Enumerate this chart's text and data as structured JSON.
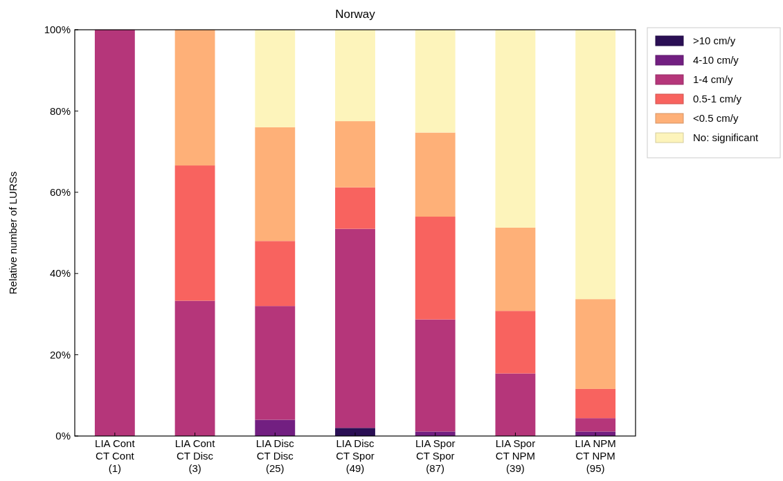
{
  "chart_data": {
    "type": "bar",
    "title": "Norway",
    "ylabel": "Relative number of LURSs",
    "categories": [
      "LIA Cont\nCT Cont\n(1)",
      "LIA Cont\nCT Disc\n(3)",
      "LIA Disc\nCT Disc\n(25)",
      "LIA Disc\nCT Spor\n(49)",
      "LIA Spor\nCT Spor\n(87)",
      "LIA Spor\nCT NPM\n(39)",
      "LIA NPM\nCT NPM\n(95)"
    ],
    "stacked": true,
    "series": [
      {
        "name": ">10 cm/y",
        "color": "#2a0f54",
        "values": [
          0,
          0,
          0,
          2.0,
          0,
          0,
          0
        ]
      },
      {
        "name": "4-10 cm/y",
        "color": "#721f81",
        "values": [
          0,
          0,
          4.0,
          0,
          1.1,
          0,
          1.1
        ]
      },
      {
        "name": "1-4 cm/y",
        "color": "#b5367a",
        "values": [
          100,
          33.3,
          28.0,
          49.0,
          27.6,
          15.4,
          3.3
        ]
      },
      {
        "name": "0.5-1 cm/y",
        "color": "#f8635f",
        "values": [
          0,
          33.3,
          16.0,
          10.2,
          25.3,
          15.4,
          7.2
        ]
      },
      {
        "name": "<0.5 cm/y",
        "color": "#feb078",
        "values": [
          0,
          33.4,
          28.0,
          16.3,
          20.7,
          20.5,
          22.1
        ]
      },
      {
        "name": "No: significant",
        "color": "#fdf4bb",
        "values": [
          0,
          0,
          24.0,
          22.5,
          25.3,
          48.7,
          66.3
        ]
      }
    ],
    "ylim": [
      0,
      100
    ],
    "yticks": [
      {
        "value": 0,
        "label": "0%"
      },
      {
        "value": 20,
        "label": "20%"
      },
      {
        "value": 40,
        "label": "40%"
      },
      {
        "value": 60,
        "label": "60%"
      },
      {
        "value": 80,
        "label": "80%"
      },
      {
        "value": 100,
        "label": "100%"
      }
    ],
    "grid": false,
    "legend": "top right"
  }
}
